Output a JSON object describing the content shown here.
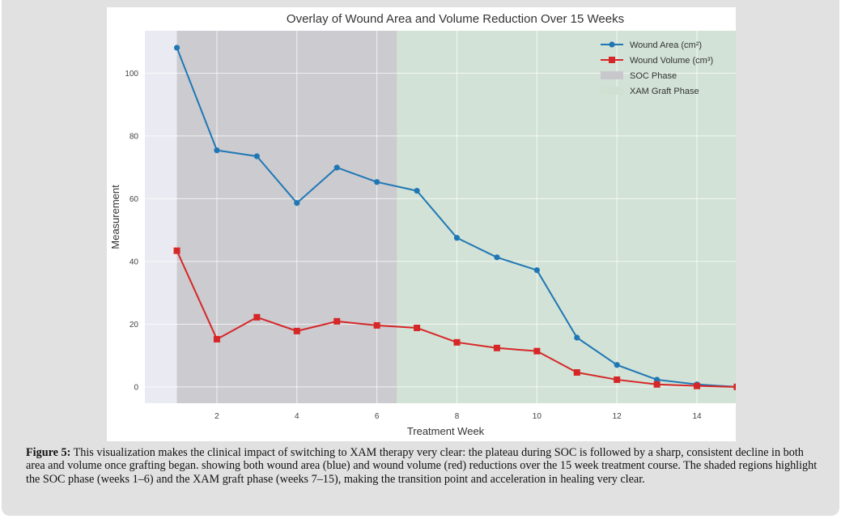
{
  "figure": {
    "caption_label": "Figure 5:",
    "caption_text": " This visualization makes the clinical impact of switching to XAM therapy very clear: the plateau during SOC is followed by a sharp, consistent decline in both area and volume once grafting began. showing both wound area (blue) and wound volume (red) reductions over the 15 week treatment course. The shaded regions highlight the SOC phase (weeks 1–6) and the XAM graft phase (weeks 7–15), making the transition point and acceleration in healing very clear."
  },
  "chart_data": {
    "type": "line",
    "title": "Overlay of Wound Area and Volume Reduction Over 15 Weeks",
    "xlabel": "Treatment Week",
    "ylabel": "Measurement",
    "x": [
      1,
      2,
      3,
      4,
      5,
      6,
      7,
      8,
      9,
      10,
      11,
      12,
      13,
      14,
      15
    ],
    "xlim": [
      0.2,
      15.8
    ],
    "ylim": [
      -5.2,
      113.5
    ],
    "xticks": [
      2,
      4,
      6,
      8,
      10,
      12,
      14
    ],
    "yticks": [
      0,
      20,
      40,
      60,
      80,
      100
    ],
    "grid": true,
    "legend_position": "top-right",
    "series": [
      {
        "name": "Wound Area (cm²)",
        "color": "#1f77b4",
        "marker": "circle",
        "values": [
          108.1,
          75.4,
          73.5,
          58.6,
          69.9,
          65.3,
          62.5,
          47.5,
          41.3,
          37.2,
          15.7,
          7.0,
          2.3,
          0.8,
          0.0
        ]
      },
      {
        "name": "Wound Volume (cm³)",
        "color": "#d62728",
        "marker": "square",
        "values": [
          43.4,
          15.2,
          22.2,
          17.8,
          20.9,
          19.6,
          18.8,
          14.2,
          12.4,
          11.4,
          4.6,
          2.3,
          0.8,
          0.3,
          0.0
        ]
      }
    ],
    "shaded_regions": [
      {
        "name": "SOC Phase",
        "x_start": 1,
        "x_end": 6.5,
        "color": "#c8c8cc"
      },
      {
        "name": "XAM Graft Phase",
        "x_start": 6.5,
        "x_end": 15,
        "color": "#cfe1d3"
      }
    ]
  }
}
